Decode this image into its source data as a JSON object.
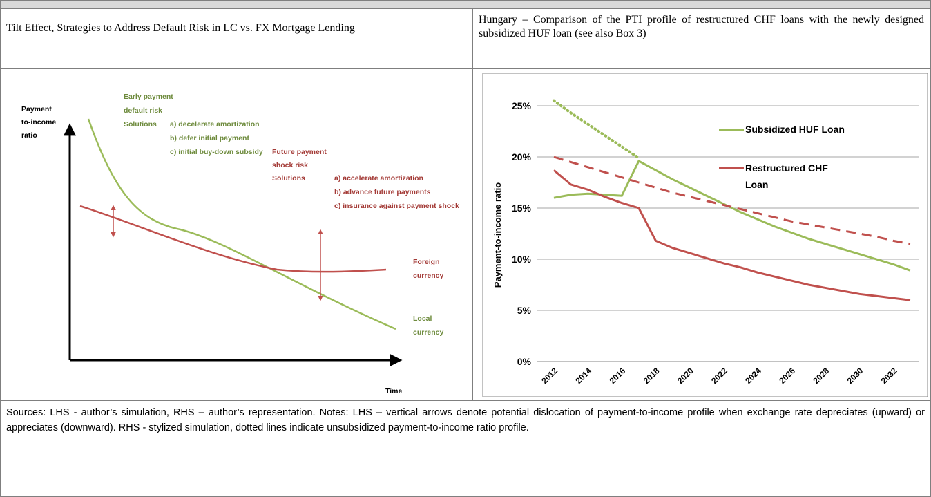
{
  "captions": {
    "left": "Tilt Effect, Strategies to Address Default Risk in LC vs. FX Mortgage Lending",
    "right": "Hungary – Comparison of the PTI profile of  restructured CHF loans with the newly designed subsidized HUF loan (see also Box 3)"
  },
  "left_figure": {
    "y_label": [
      "Payment",
      "to-income",
      "ratio"
    ],
    "x_label": "Time",
    "early": [
      "Early payment",
      "default risk",
      "Solutions",
      "a) decelerate amortization",
      "b) defer initial payment",
      "c) initial buy-down subsidy"
    ],
    "future": [
      "Future payment",
      "shock risk",
      "Solutions",
      "a) accelerate amortization",
      "b) advance future payments",
      "c) insurance against payment shock"
    ],
    "foreign": [
      "Foreign",
      "currency"
    ],
    "local": [
      "Local",
      "currency"
    ]
  },
  "chart_data": {
    "type": "line",
    "y_label": "Payment-to-income ratio",
    "categories": [
      "2012",
      null,
      "2014",
      null,
      "2016",
      null,
      "2018",
      null,
      "2020",
      null,
      "2022",
      null,
      "2024",
      null,
      "2026",
      null,
      "2028",
      null,
      "2030",
      null,
      "2032",
      null
    ],
    "series": [
      {
        "name": "Subsidized HUF Loan",
        "color": "#9bbb59",
        "dash": "solid",
        "values": [
          16,
          16.3,
          16.4,
          16.3,
          16.2,
          19.6,
          18.7,
          17.8,
          17,
          16.2,
          15.4,
          14.6,
          13.9,
          13.2,
          12.6,
          12,
          11.5,
          11,
          10.5,
          10,
          9.5,
          8.9
        ]
      },
      {
        "name": "Restructured CHF Loan",
        "color": "#c0504d",
        "dash": "solid",
        "values": [
          18.7,
          17.3,
          16.8,
          16.1,
          15.5,
          15,
          11.8,
          11.1,
          10.6,
          10.1,
          9.6,
          9.2,
          8.7,
          8.3,
          7.9,
          7.5,
          7.2,
          6.9,
          6.6,
          6.4,
          6.2,
          6.0
        ]
      },
      {
        "color": "#9bbb59",
        "dash": "dotted",
        "values": [
          25.5,
          24.3,
          23.2,
          22.1,
          21,
          19.9,
          null,
          null,
          null,
          null,
          null,
          null,
          null,
          null,
          null,
          null,
          null,
          null,
          null,
          null,
          null,
          null
        ]
      },
      {
        "color": "#c0504d",
        "dash": "dashed",
        "values": [
          20,
          19.5,
          19,
          18.5,
          18,
          17.5,
          17,
          16.5,
          16.1,
          15.7,
          15.3,
          14.9,
          14.5,
          14.1,
          13.7,
          13.4,
          13.1,
          12.8,
          12.5,
          12.2,
          11.8,
          11.5
        ]
      }
    ],
    "ylim": [
      0,
      25
    ],
    "yticks": [
      {
        "value": 0,
        "label": "0%"
      },
      {
        "value": 5,
        "label": "5%"
      },
      {
        "value": 10,
        "label": "10%"
      },
      {
        "value": 15,
        "label": "15%"
      },
      {
        "value": 20,
        "label": "20%"
      },
      {
        "value": 25,
        "label": "25%"
      }
    ],
    "grid": true,
    "legend": "upper right"
  },
  "notes": "Sources: LHS - author’s simulation, RHS – author’s representation. Notes: LHS – vertical arrows denote potential dislocation of payment-to-income profile when exchange rate depreciates (upward) or appreciates (downward). RHS - stylized simulation, dotted lines indicate unsubsidized payment-to-income ratio profile."
}
